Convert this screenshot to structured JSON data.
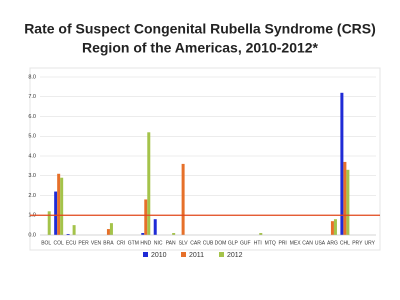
{
  "chart_data": {
    "type": "bar",
    "title": "Rate of Suspect Congenital Rubella Syndrome (CRS)",
    "subtitle": "Region of the Americas, 2010-2012*",
    "categories": [
      "BOL",
      "COL",
      "ECU",
      "PER",
      "VEN",
      "BRA",
      "CRI",
      "GTM",
      "HND",
      "NIC",
      "PAN",
      "SLV",
      "CAR",
      "CUB",
      "DOM",
      "GLP",
      "GUF",
      "HTI",
      "MTQ",
      "PRI",
      "MEX",
      "CAN",
      "USA",
      "ARG",
      "CHL",
      "PRY",
      "URY"
    ],
    "series": [
      {
        "name": "2010",
        "color": "#1f2bd6",
        "values": [
          0,
          2.2,
          0.05,
          0,
          0,
          0,
          0,
          0,
          0.1,
          0.8,
          0,
          0,
          0,
          0,
          0,
          0,
          0,
          0,
          0,
          0,
          0,
          0,
          0,
          0,
          7.2,
          0,
          0
        ]
      },
      {
        "name": "2011",
        "color": "#e6702a",
        "values": [
          0,
          3.1,
          0,
          0,
          0,
          0.3,
          0,
          0,
          1.8,
          0,
          0,
          3.6,
          0,
          0,
          0,
          0,
          0,
          0,
          0,
          0,
          0,
          0,
          0,
          0.7,
          3.7,
          0,
          0
        ]
      },
      {
        "name": "2012",
        "color": "#a4c34a",
        "values": [
          1.2,
          2.9,
          0.5,
          0,
          0,
          0.6,
          0,
          0,
          5.2,
          0,
          0.1,
          0,
          0,
          0,
          0,
          0,
          0,
          0.1,
          0,
          0,
          0,
          0,
          0,
          0.8,
          3.3,
          0,
          0
        ]
      }
    ],
    "ylim": [
      0,
      8
    ],
    "yticks": [
      {
        "value": 0,
        "label": "0.0"
      },
      {
        "value": 1,
        "label": "1.0"
      },
      {
        "value": 2,
        "label": "2.0"
      },
      {
        "value": 3,
        "label": "3.0"
      },
      {
        "value": 4,
        "label": "4.0"
      },
      {
        "value": 5,
        "label": "5.0"
      },
      {
        "value": 6,
        "label": "6.0"
      },
      {
        "value": 7,
        "label": "7.0"
      },
      {
        "value": 8,
        "label": "8.0"
      }
    ],
    "grid": true,
    "reference_line": {
      "value": 1,
      "color": "#e0461a"
    },
    "legend": "bottom"
  }
}
